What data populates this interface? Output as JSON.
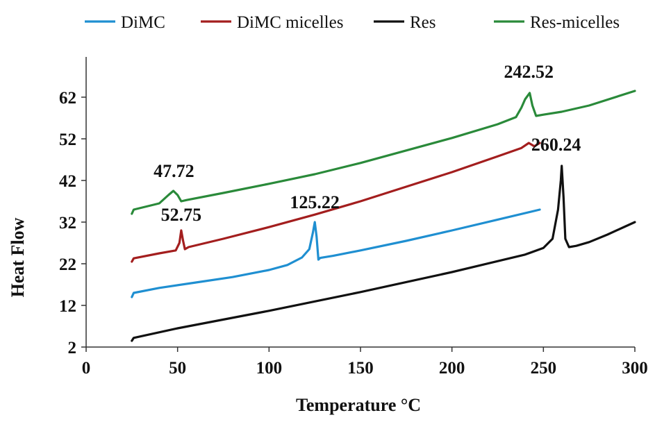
{
  "chart_data": {
    "type": "line",
    "title": "",
    "xlabel": "Temperature °C",
    "ylabel": "Heat Flow",
    "xlim": [
      0,
      300
    ],
    "ylim": [
      2,
      70
    ],
    "x_ticks": [
      0,
      50,
      100,
      150,
      200,
      250,
      300
    ],
    "y_ticks": [
      2,
      12,
      22,
      32,
      42,
      52,
      62
    ],
    "grid": false,
    "legend_position": "top",
    "series": [
      {
        "name": "DiMC",
        "color": "#1f8fd1",
        "x": [
          25,
          26,
          40,
          60,
          80,
          100,
          110,
          118,
          122,
          124,
          125,
          126,
          127,
          128,
          135,
          150,
          175,
          200,
          225,
          248
        ],
        "y": [
          14,
          15,
          16.2,
          17.5,
          18.8,
          20.5,
          21.7,
          23.5,
          25.5,
          29.5,
          32,
          28.5,
          23,
          23.4,
          23.9,
          25.2,
          27.5,
          30,
          32.6,
          35
        ]
      },
      {
        "name": "DiMC micelles",
        "color": "#a31e1e",
        "x": [
          25,
          26,
          40,
          49,
          51,
          52,
          53,
          54,
          56,
          75,
          100,
          125,
          150,
          175,
          200,
          225,
          238,
          242,
          245,
          248
        ],
        "y": [
          22.5,
          23.3,
          24.5,
          25.2,
          27,
          30,
          27.5,
          25.5,
          26,
          28,
          30.8,
          33.8,
          37,
          40.5,
          44,
          47.8,
          49.8,
          51,
          50.2,
          51
        ]
      },
      {
        "name": "Res",
        "color": "#111111",
        "x": [
          25,
          26,
          50,
          100,
          150,
          200,
          240,
          250,
          255,
          258,
          259.5,
          260,
          261,
          262,
          264,
          268,
          275,
          285,
          295,
          300
        ],
        "y": [
          3.5,
          4.2,
          6.5,
          10.7,
          15.2,
          20,
          24.2,
          25.8,
          28,
          35,
          42,
          45.5,
          38,
          28,
          26,
          26.3,
          27.2,
          29,
          31,
          32
        ]
      },
      {
        "name": "Res-micelles",
        "color": "#2a8a3a",
        "x": [
          25,
          26,
          40,
          45,
          47.7,
          50,
          52,
          55,
          75,
          100,
          125,
          150,
          175,
          200,
          225,
          235,
          238,
          240,
          242.5,
          244,
          246,
          250,
          260,
          275,
          300
        ],
        "y": [
          34,
          35,
          36.5,
          38.5,
          39.5,
          38.5,
          37,
          37.3,
          39,
          41.2,
          43.5,
          46.2,
          49.2,
          52.2,
          55.5,
          57.2,
          59.5,
          61.5,
          63,
          60,
          57.5,
          57.8,
          58.5,
          60,
          63.5
        ]
      }
    ],
    "annotations": [
      {
        "text": "47.72",
        "x": 48,
        "y": 39.5
      },
      {
        "text": "52.75",
        "x": 52,
        "y": 30
      },
      {
        "text": "125.22",
        "x": 125,
        "y": 32
      },
      {
        "text": "242.52",
        "x": 242,
        "y": 63
      },
      {
        "text": "260.24",
        "x": 260,
        "y": 45.5
      }
    ]
  }
}
